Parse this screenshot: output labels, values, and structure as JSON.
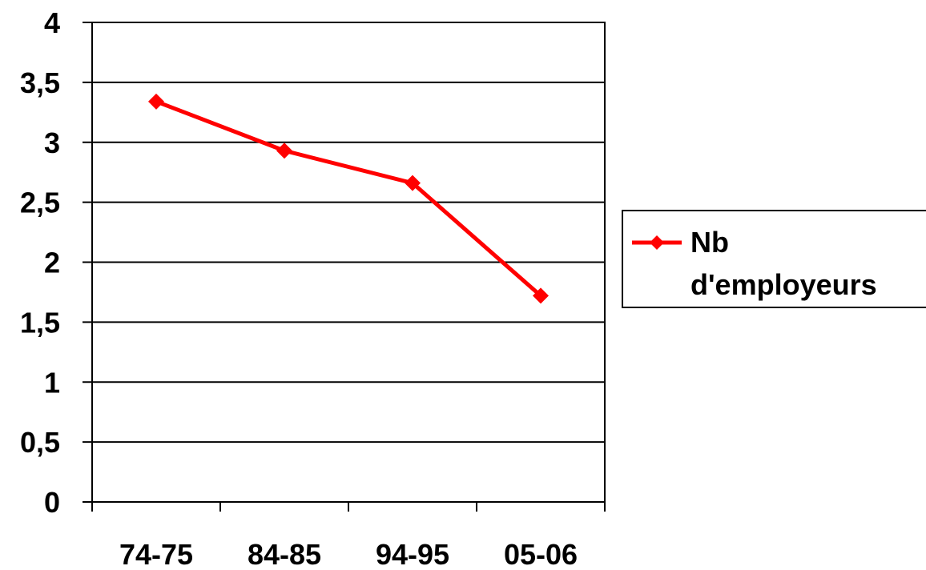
{
  "chart_data": {
    "type": "line",
    "title": "",
    "xlabel": "",
    "ylabel": "",
    "categories": [
      "74-75",
      "84-85",
      "94-95",
      "05-06"
    ],
    "series": [
      {
        "name": "Nb d'employeurs",
        "name_lines": [
          "Nb",
          "d'employeurs"
        ],
        "values": [
          3.34,
          2.93,
          2.66,
          1.72
        ],
        "color": "#ff0000",
        "marker": "diamond"
      }
    ],
    "ylim": [
      0,
      4
    ],
    "yticks": [
      0,
      0.5,
      1,
      1.5,
      2,
      2.5,
      3,
      3.5,
      4
    ],
    "ytick_labels": [
      "0",
      "0,5",
      "1",
      "1,5",
      "2",
      "2,5",
      "3",
      "3,5",
      "4"
    ],
    "grid": true,
    "legend_position": "right"
  }
}
